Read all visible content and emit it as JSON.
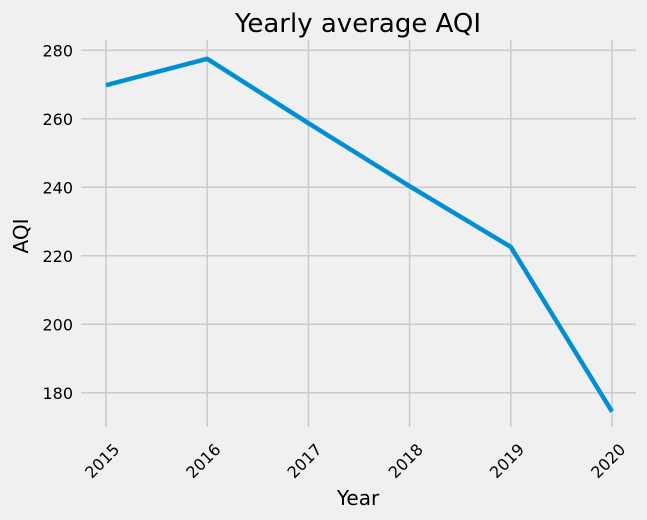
{
  "chart_data": {
    "type": "line",
    "title": "Yearly average AQI",
    "xlabel": "Year",
    "ylabel": "AQI",
    "categories": [
      "2015",
      "2016",
      "2017",
      "2018",
      "2019",
      "2020"
    ],
    "series": [
      {
        "values": [
          269.8,
          277.5,
          258.7,
          240.3,
          222.6,
          174.5
        ]
      }
    ],
    "yticks": [
      "180",
      "200",
      "220",
      "240",
      "260",
      "280"
    ],
    "ylim": [
      170,
      283
    ],
    "grid": true,
    "line_color": "#008fd5",
    "background_color": "#f0f0f0"
  }
}
